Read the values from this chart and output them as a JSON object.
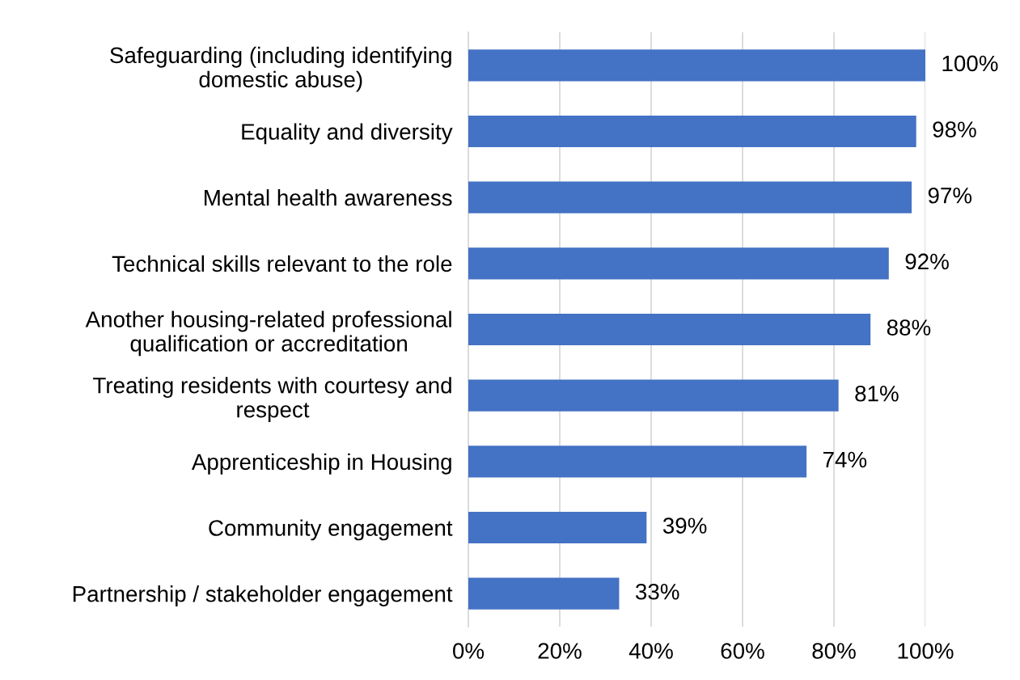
{
  "chart_data": {
    "type": "bar",
    "orientation": "horizontal",
    "categories": [
      "Safeguarding (including identifying\ndomestic abuse)",
      "Equality and diversity",
      "Mental health awareness",
      "Technical skills relevant to the role",
      "Another housing-related professional\nqualification or accreditation",
      "Treating residents with courtesy and\nrespect",
      "Apprenticeship in Housing",
      "Community engagement",
      "Partnership / stakeholder engagement"
    ],
    "values": [
      100,
      98,
      97,
      92,
      88,
      81,
      74,
      39,
      33
    ],
    "value_labels": [
      "100%",
      "98%",
      "97%",
      "92%",
      "88%",
      "81%",
      "74%",
      "39%",
      "33%"
    ],
    "color": "#4472c4",
    "xlim": [
      0,
      100
    ],
    "xticks": [
      {
        "value": 0,
        "label": "0%"
      },
      {
        "value": 20,
        "label": "20%"
      },
      {
        "value": 40,
        "label": "40%"
      },
      {
        "value": 60,
        "label": "60%"
      },
      {
        "value": 80,
        "label": "80%"
      },
      {
        "value": 100,
        "label": "100%"
      }
    ],
    "grid": "x",
    "legend": false
  }
}
